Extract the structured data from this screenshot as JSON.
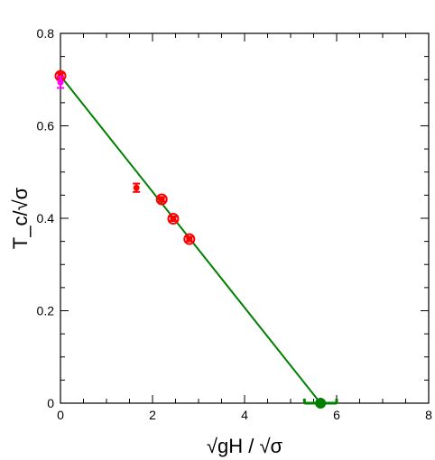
{
  "chart_data": {
    "type": "scatter",
    "xlabel": "√gH / √σ",
    "ylabel": "T_c/√σ",
    "xlim": [
      0,
      8
    ],
    "ylim": [
      0,
      0.8
    ],
    "x_ticks": [
      0,
      2,
      4,
      6,
      8
    ],
    "y_ticks": [
      0,
      0.2,
      0.4,
      0.6,
      0.8
    ],
    "x_tick_labels": [
      "0",
      "2",
      "4",
      "6",
      "8"
    ],
    "y_tick_labels": [
      "0",
      "0.2",
      "0.4",
      "0.6",
      "0.8"
    ],
    "grid": false,
    "series": [
      {
        "style": "filled-circle-errorbar",
        "color": "#ff0000",
        "points": [
          {
            "x": 0.0,
            "y": 0.708,
            "yerr": 0.006
          },
          {
            "x": 1.65,
            "y": 0.466,
            "yerr": 0.009
          },
          {
            "x": 2.2,
            "y": 0.441,
            "yerr": 0.005
          },
          {
            "x": 2.45,
            "y": 0.399,
            "yerr": 0.005
          },
          {
            "x": 2.8,
            "y": 0.355,
            "yerr": 0.005
          }
        ]
      },
      {
        "style": "open-circle",
        "color": "#ff0000",
        "points": [
          {
            "x": 0.0,
            "y": 0.708
          },
          {
            "x": 2.2,
            "y": 0.441
          },
          {
            "x": 2.45,
            "y": 0.399
          },
          {
            "x": 2.8,
            "y": 0.355
          }
        ]
      },
      {
        "style": "filled-circle-errorbar",
        "color": "#ff00ff",
        "points": [
          {
            "x": 0.0,
            "y": 0.694,
            "yerr": 0.012
          }
        ]
      },
      {
        "style": "line",
        "color": "#008000",
        "points": [
          {
            "x": 0.0,
            "y": 0.708
          },
          {
            "x": 5.65,
            "y": 0.0
          }
        ]
      },
      {
        "style": "filled-circle-xerrorbar",
        "color": "#008000",
        "points": [
          {
            "x": 5.65,
            "y": 0.0,
            "xerr_minus": 0.35,
            "xerr_plus": 0.35
          }
        ]
      }
    ]
  }
}
